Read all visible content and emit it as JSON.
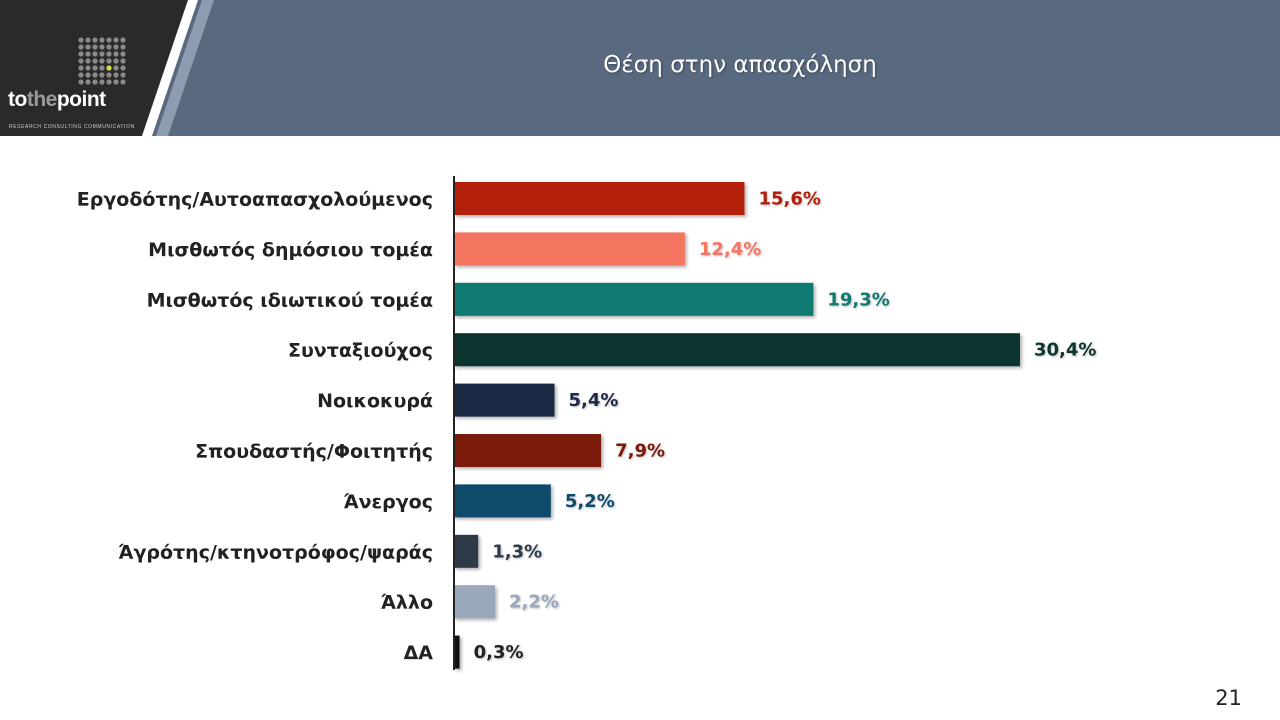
{
  "header": {
    "title": "Θέση στην απασχόληση",
    "logo_text_prefix": "to",
    "logo_text_accent": "the",
    "logo_text_suffix": "point",
    "logo_tagline": "RESEARCH  CONSULTING  COMMUNICATION",
    "colors": {
      "banner": "#596a80",
      "logo_bg": "#2a2a2a",
      "logo_dot_accent": "#d4e04a"
    }
  },
  "chart_data": {
    "type": "bar",
    "orientation": "horizontal",
    "categories": [
      "Εργοδότης/Αυτοαπασχολούμενος",
      "Μισθωτός δημόσιου τομέα",
      "Μισθωτός ιδιωτικού τομέα",
      "Συνταξιούχος",
      "Νοικοκυρά",
      "Σπουδαστής/Φοιτητής",
      "Άνεργος",
      "Άγρότης/κτηνοτρόφος/ψαράς",
      "Άλλο",
      "ΔΑ"
    ],
    "values": [
      15.6,
      12.4,
      19.3,
      30.4,
      5.4,
      7.9,
      5.2,
      1.3,
      2.2,
      0.3
    ],
    "value_labels": [
      "15,6%",
      "12,4%",
      "19,3%",
      "30,4%",
      "5,4%",
      "7,9%",
      "5,2%",
      "1,3%",
      "2,2%",
      "0,3%"
    ],
    "colors": [
      "#b21f0a",
      "#f47560",
      "#0e7a72",
      "#0d3530",
      "#1a2a45",
      "#7a1a0a",
      "#0e4a6a",
      "#2f3a48",
      "#9aa8bc",
      "#111111"
    ],
    "xlim": [
      0,
      30.4
    ],
    "grid": false,
    "legend": "none"
  },
  "page_number": "21"
}
